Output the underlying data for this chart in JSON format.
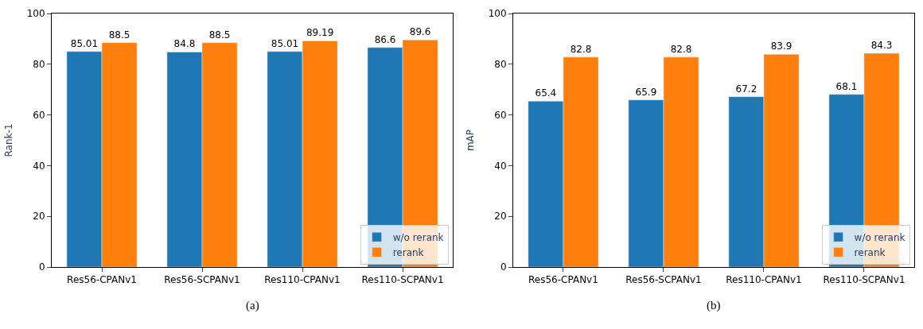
{
  "chart_data": [
    {
      "type": "bar",
      "categories": [
        "Res56-CPANv1",
        "Res56-SCPANv1",
        "Res110-CPANv1",
        "Res110-SCPANv1"
      ],
      "series": [
        {
          "name": "w/o rerank",
          "color": "#1f77b4",
          "values": [
            85.01,
            84.8,
            85.01,
            86.6
          ]
        },
        {
          "name": "rerank",
          "color": "#ff7f0e",
          "values": [
            88.5,
            88.5,
            89.19,
            89.6
          ]
        }
      ],
      "ylabel": "Rank-1",
      "ylim": [
        0,
        100
      ],
      "yticks": [
        0,
        20,
        40,
        60,
        80,
        100
      ],
      "data_labels": true,
      "legend": "bottom right",
      "grid": false,
      "annotations": [
        "(a)"
      ]
    },
    {
      "type": "bar",
      "categories": [
        "Res56-CPANv1",
        "Res56-SCPANv1",
        "Res110-CPANv1",
        "Res110-SCPANv1"
      ],
      "series": [
        {
          "name": "w/o rerank",
          "color": "#1f77b4",
          "values": [
            65.4,
            65.9,
            67.2,
            68.1
          ]
        },
        {
          "name": "rerank",
          "color": "#ff7f0e",
          "values": [
            82.8,
            82.8,
            83.9,
            84.3
          ]
        }
      ],
      "ylabel": "mAP",
      "ylim": [
        0,
        100
      ],
      "yticks": [
        0,
        20,
        40,
        60,
        80,
        100
      ],
      "data_labels": true,
      "legend": "bottom right",
      "grid": false,
      "annotations": [
        "(b)"
      ]
    }
  ]
}
